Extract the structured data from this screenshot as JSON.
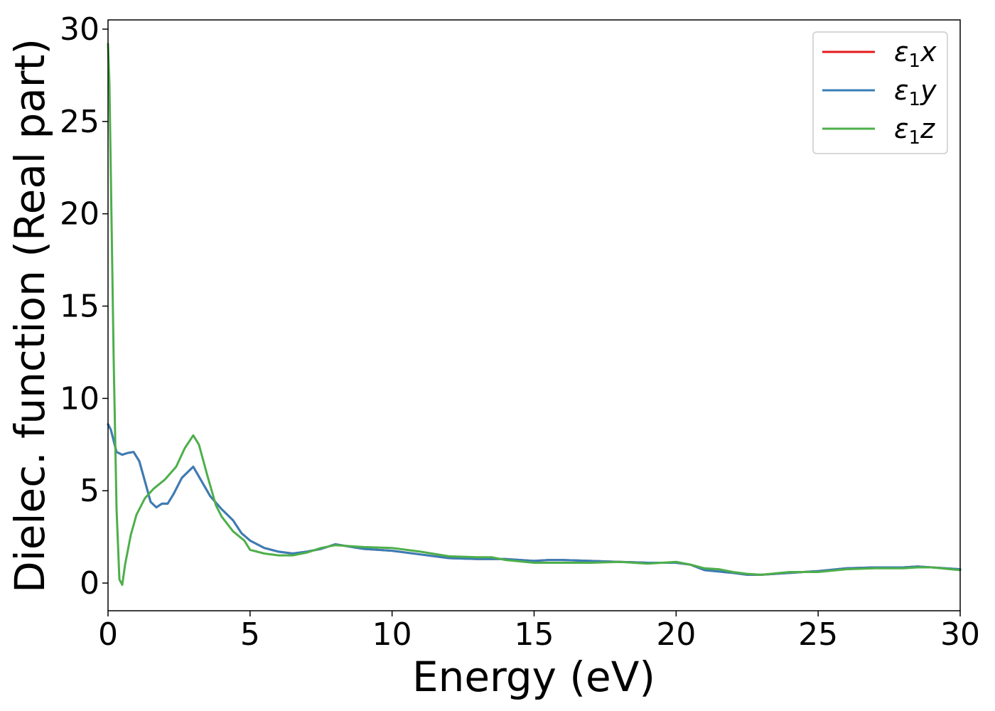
{
  "chart_data": {
    "type": "line",
    "title": "",
    "xlabel": "Energy (eV)",
    "ylabel": "Dielec. function (Real part)",
    "xlim": [
      0,
      30
    ],
    "ylim": [
      -1.5,
      30.5
    ],
    "xticks": [
      0,
      5,
      10,
      15,
      20,
      25,
      30
    ],
    "yticks": [
      0,
      5,
      10,
      15,
      20,
      25,
      30
    ],
    "grid": false,
    "legend_position": "top-right",
    "series": [
      {
        "name": "ε1x",
        "legend_symbol": "ε",
        "legend_sub": "1",
        "legend_suffix": "x",
        "color": "#e41a1c",
        "x": [
          0,
          0.1,
          0.2,
          0.3,
          0.5,
          0.7,
          0.9,
          1.1,
          1.3,
          1.5,
          1.7,
          1.9,
          2.1,
          2.3,
          2.6,
          3.0,
          3.3,
          3.6,
          4.0,
          4.4,
          4.7,
          5.0,
          5.5,
          6.0,
          6.5,
          7.0,
          7.5,
          8.0,
          9.0,
          10.0,
          11.0,
          12.0,
          13.0,
          14.0,
          15.0,
          15.5,
          16.0,
          17.0,
          18.0,
          19.0,
          20.0,
          20.5,
          21.0,
          22.0,
          22.5,
          23.0,
          24.0,
          25.0,
          26.0,
          27.0,
          28.0,
          28.5,
          29.0,
          30.0
        ],
        "y": [
          8.6,
          8.3,
          7.7,
          7.1,
          6.95,
          7.05,
          7.1,
          6.6,
          5.5,
          4.4,
          4.1,
          4.3,
          4.3,
          4.8,
          5.7,
          6.3,
          5.5,
          4.7,
          4.0,
          3.4,
          2.7,
          2.3,
          1.9,
          1.7,
          1.6,
          1.7,
          1.85,
          2.1,
          1.85,
          1.75,
          1.55,
          1.35,
          1.3,
          1.3,
          1.2,
          1.25,
          1.25,
          1.2,
          1.15,
          1.1,
          1.1,
          1.0,
          0.7,
          0.55,
          0.45,
          0.45,
          0.55,
          0.65,
          0.8,
          0.85,
          0.85,
          0.9,
          0.85,
          0.75
        ]
      },
      {
        "name": "ε1y",
        "legend_symbol": "ε",
        "legend_sub": "1",
        "legend_suffix": "y",
        "color": "#377eb8",
        "x": [
          0,
          0.1,
          0.2,
          0.3,
          0.5,
          0.7,
          0.9,
          1.1,
          1.3,
          1.5,
          1.7,
          1.9,
          2.1,
          2.3,
          2.6,
          3.0,
          3.3,
          3.6,
          4.0,
          4.4,
          4.7,
          5.0,
          5.5,
          6.0,
          6.5,
          7.0,
          7.5,
          8.0,
          9.0,
          10.0,
          11.0,
          12.0,
          13.0,
          14.0,
          15.0,
          15.5,
          16.0,
          17.0,
          18.0,
          19.0,
          20.0,
          20.5,
          21.0,
          22.0,
          22.5,
          23.0,
          24.0,
          25.0,
          26.0,
          27.0,
          28.0,
          28.5,
          29.0,
          30.0
        ],
        "y": [
          8.6,
          8.3,
          7.7,
          7.1,
          6.95,
          7.05,
          7.1,
          6.6,
          5.5,
          4.4,
          4.1,
          4.3,
          4.3,
          4.8,
          5.7,
          6.3,
          5.5,
          4.7,
          4.0,
          3.4,
          2.7,
          2.3,
          1.9,
          1.7,
          1.6,
          1.7,
          1.85,
          2.1,
          1.85,
          1.75,
          1.55,
          1.35,
          1.3,
          1.3,
          1.2,
          1.25,
          1.25,
          1.2,
          1.15,
          1.1,
          1.1,
          1.0,
          0.7,
          0.55,
          0.45,
          0.45,
          0.55,
          0.65,
          0.8,
          0.85,
          0.85,
          0.9,
          0.85,
          0.75
        ]
      },
      {
        "name": "ε1z",
        "legend_symbol": "ε",
        "legend_sub": "1",
        "legend_suffix": "z",
        "color": "#4daf4a",
        "x": [
          0,
          0.05,
          0.1,
          0.2,
          0.3,
          0.4,
          0.5,
          0.6,
          0.8,
          1.0,
          1.3,
          1.6,
          2.0,
          2.4,
          2.7,
          3.0,
          3.2,
          3.5,
          3.8,
          4.0,
          4.4,
          4.8,
          5.0,
          5.5,
          6.0,
          6.5,
          7.0,
          7.5,
          8.0,
          9.0,
          10.0,
          11.0,
          12.0,
          13.0,
          13.5,
          14.0,
          15.0,
          16.0,
          17.0,
          18.0,
          19.0,
          20.0,
          20.5,
          21.0,
          21.5,
          22.0,
          22.5,
          23.0,
          24.0,
          25.0,
          26.0,
          27.0,
          28.0,
          28.5,
          29.0,
          30.0
        ],
        "y": [
          29.2,
          27.0,
          22.0,
          12.0,
          4.0,
          0.2,
          -0.1,
          1.0,
          2.6,
          3.7,
          4.6,
          5.1,
          5.6,
          6.3,
          7.3,
          8.0,
          7.5,
          5.8,
          4.2,
          3.6,
          2.8,
          2.3,
          1.8,
          1.6,
          1.5,
          1.5,
          1.65,
          1.9,
          2.05,
          1.95,
          1.9,
          1.7,
          1.45,
          1.4,
          1.4,
          1.25,
          1.1,
          1.1,
          1.1,
          1.15,
          1.05,
          1.15,
          1.0,
          0.8,
          0.75,
          0.6,
          0.5,
          0.45,
          0.6,
          0.6,
          0.75,
          0.8,
          0.8,
          0.85,
          0.85,
          0.7
        ]
      }
    ]
  }
}
